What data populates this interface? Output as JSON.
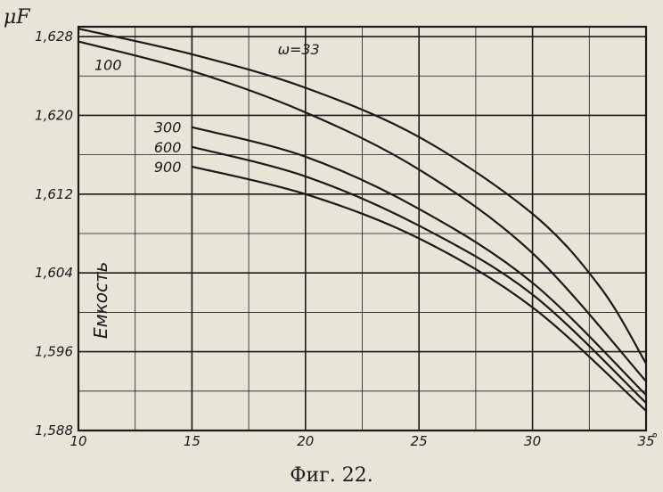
{
  "chart_data": {
    "type": "line",
    "title": "",
    "caption": "Фиг. 22.",
    "xlabel": "",
    "x_unit_suffix": "°",
    "ylabel": "Емкость",
    "y_unit": "μF",
    "xlim": [
      10,
      35
    ],
    "ylim": [
      1.588,
      1.629
    ],
    "x_ticks": [
      "10",
      "15",
      "20",
      "25",
      "30",
      "35"
    ],
    "y_ticks": [
      "1,588",
      "1,596",
      "1,604",
      "1,612",
      "1,620",
      "1,628"
    ],
    "grid": true,
    "line_color": "#1a1a1a",
    "series": [
      {
        "name": "ω=33",
        "x": [
          10,
          15,
          20,
          25,
          30,
          33,
          35
        ],
        "y": [
          1.6288,
          1.6262,
          1.6228,
          1.6178,
          1.61,
          1.6025,
          1.5948
        ]
      },
      {
        "name": "100",
        "x": [
          10,
          15,
          20,
          25,
          30,
          35
        ],
        "y": [
          1.6275,
          1.6245,
          1.6203,
          1.6145,
          1.606,
          1.593
        ]
      },
      {
        "name": "300",
        "x": [
          15,
          20,
          25,
          30,
          35
        ],
        "y": [
          1.6188,
          1.6158,
          1.6105,
          1.603,
          1.5916
        ]
      },
      {
        "name": "600",
        "x": [
          15,
          20,
          25,
          30,
          35
        ],
        "y": [
          1.6168,
          1.6138,
          1.6088,
          1.6018,
          1.5908
        ]
      },
      {
        "name": "900",
        "x": [
          15,
          20,
          25,
          30,
          35
        ],
        "y": [
          1.6148,
          1.612,
          1.6075,
          1.6005,
          1.59
        ]
      }
    ]
  }
}
